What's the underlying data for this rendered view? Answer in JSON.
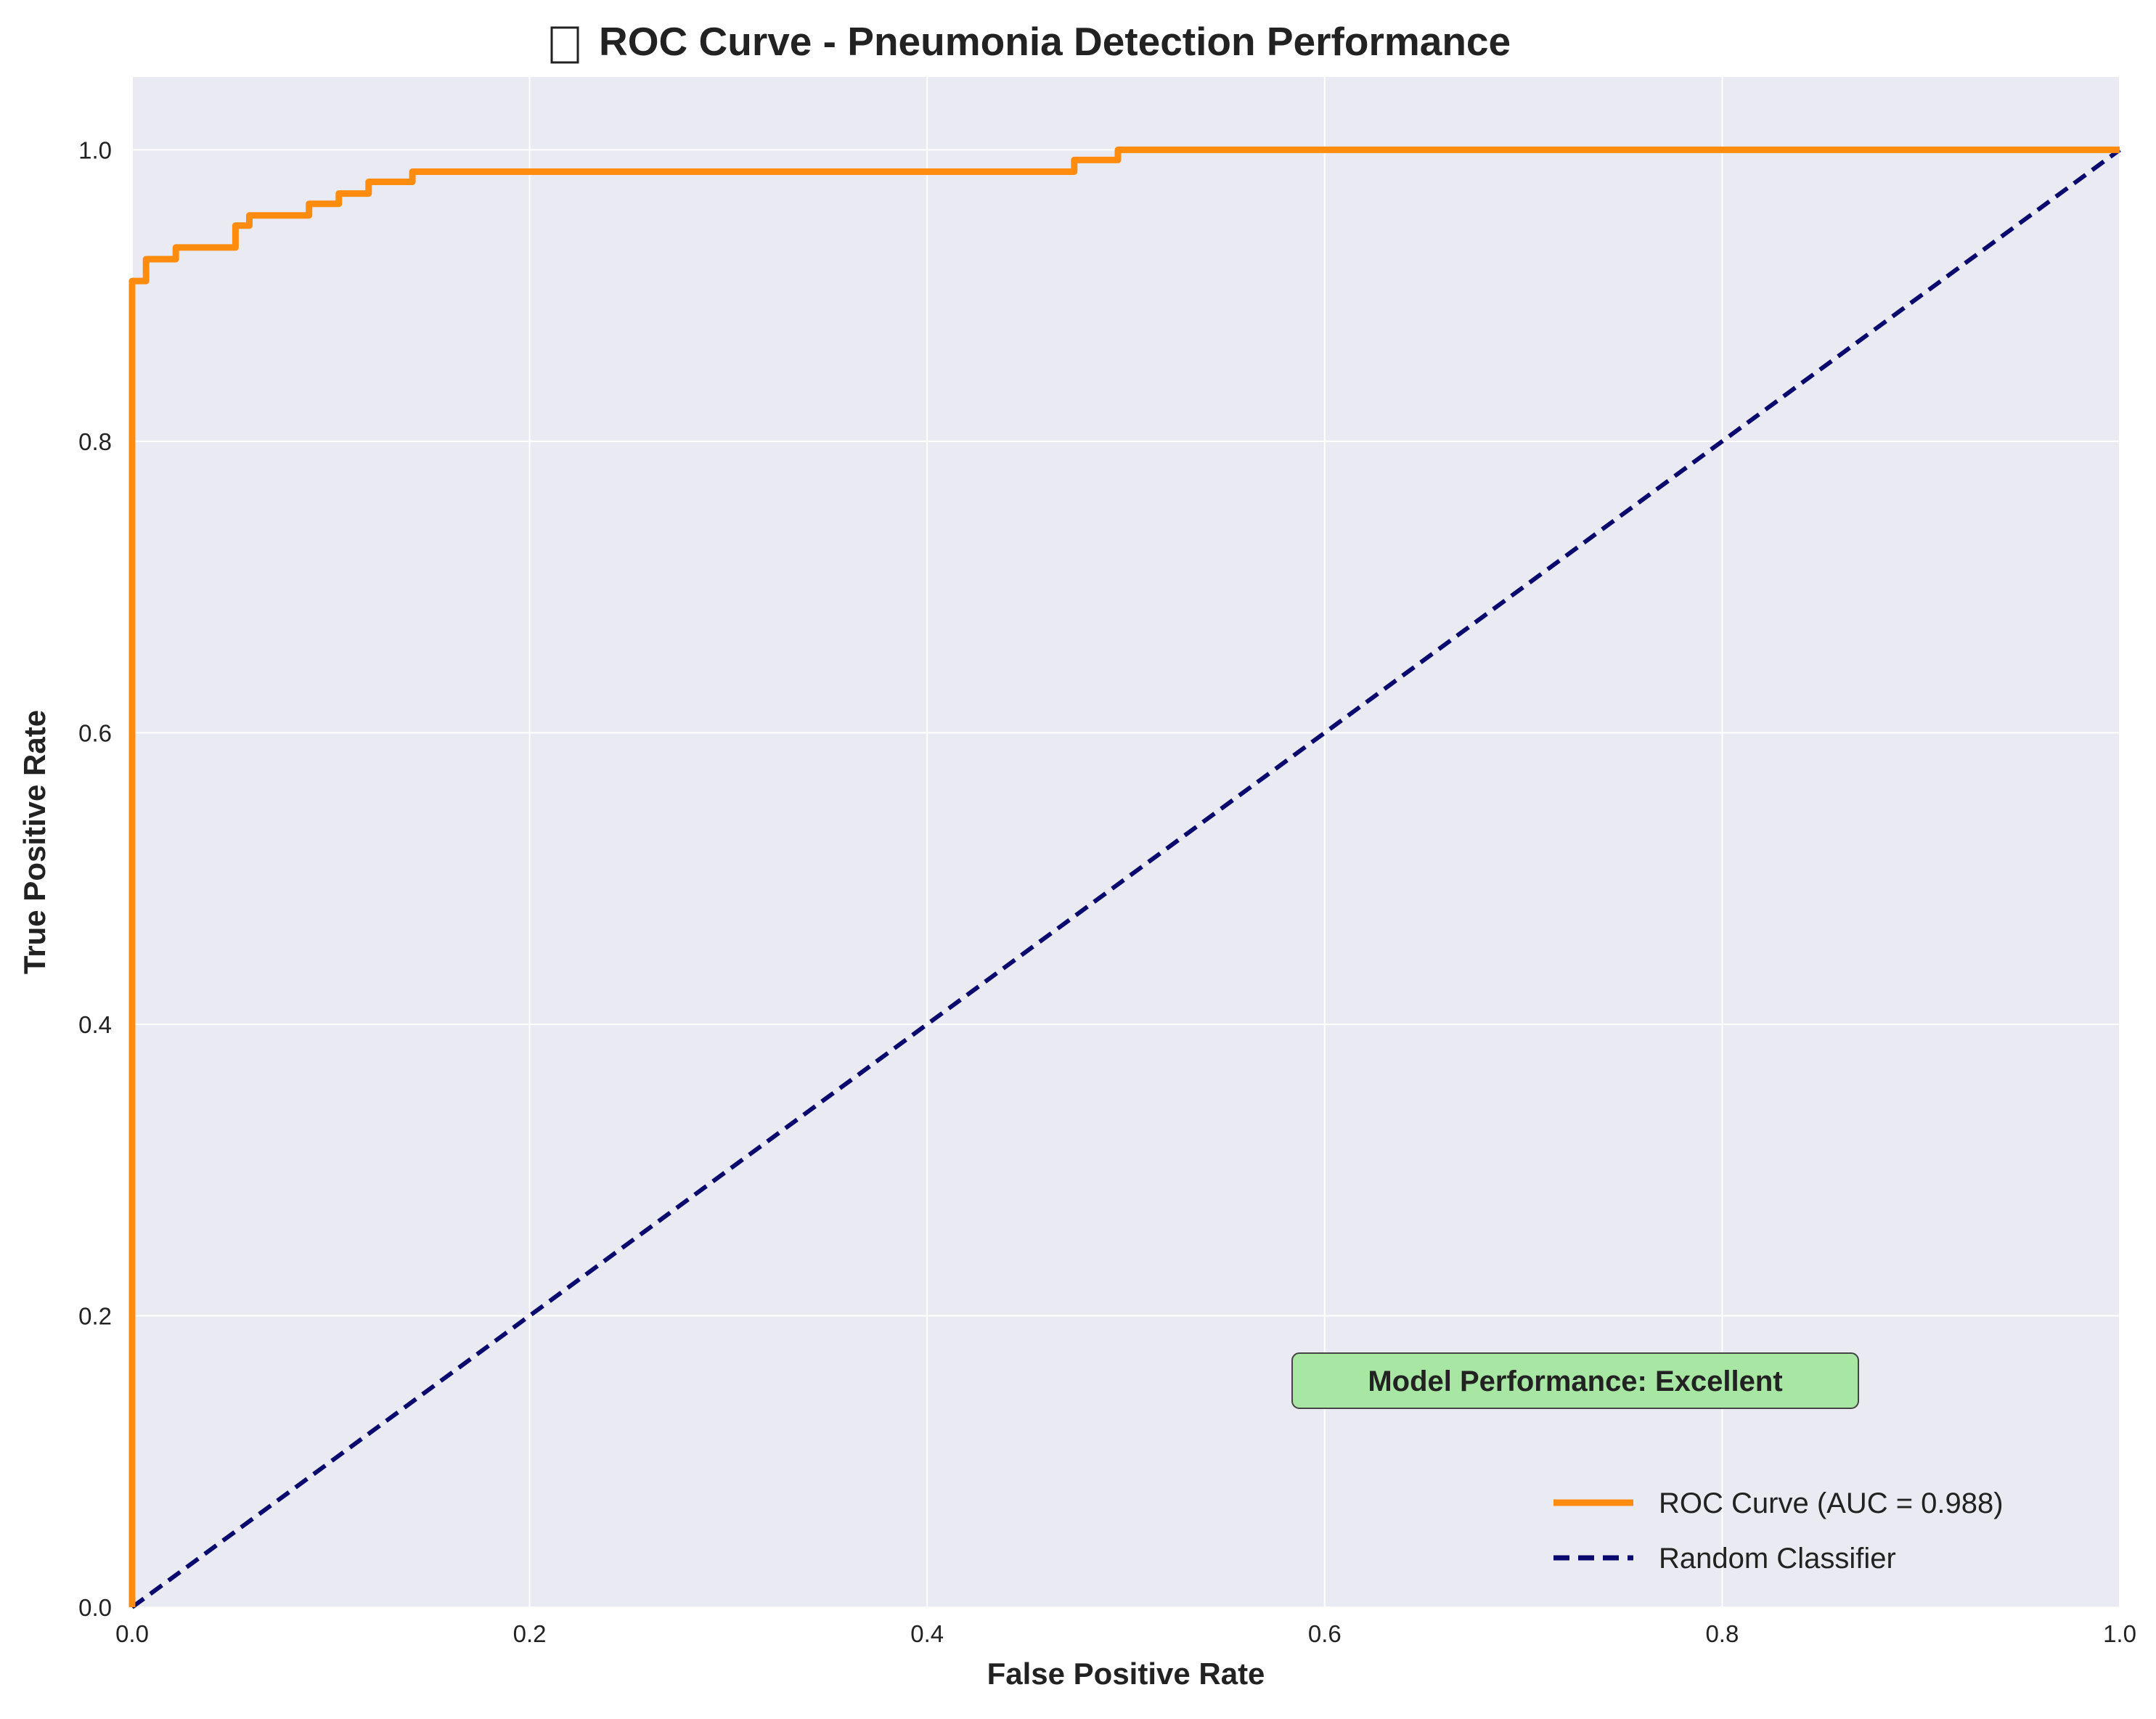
{
  "chart_data": {
    "type": "line",
    "title": "ROC Curve - Pneumonia Detection Performance",
    "title_icon": "stethoscope-icon",
    "xlabel": "False Positive Rate",
    "ylabel": "True Positive Rate",
    "xlim": [
      0,
      1
    ],
    "ylim": [
      0,
      1.05
    ],
    "xticks": [
      "0.0",
      "0.2",
      "0.4",
      "0.6",
      "0.8",
      "1.0"
    ],
    "yticks": [
      "0.0",
      "0.2",
      "0.4",
      "0.6",
      "0.8",
      "1.0"
    ],
    "grid": true,
    "legend_position": "bottom-right",
    "annotation": "Model Performance: Excellent",
    "colors": {
      "background": "#eaeaf2",
      "grid": "#ffffff",
      "roc": "#ff8c0f",
      "random": "#0a0a6e",
      "annotation_fill": "#a8e6a3"
    },
    "series": [
      {
        "name": "ROC Curve (AUC = 0.988)",
        "style": "solid",
        "x": [
          0.0,
          0.0,
          0.007,
          0.007,
          0.022,
          0.022,
          0.052,
          0.052,
          0.059,
          0.059,
          0.089,
          0.089,
          0.104,
          0.104,
          0.119,
          0.119,
          0.141,
          0.141,
          0.474,
          0.474,
          0.496,
          0.496,
          1.0
        ],
        "y": [
          0.0,
          0.91,
          0.91,
          0.925,
          0.925,
          0.933,
          0.933,
          0.948,
          0.948,
          0.955,
          0.955,
          0.963,
          0.963,
          0.97,
          0.97,
          0.978,
          0.978,
          0.985,
          0.985,
          0.993,
          0.993,
          1.0,
          1.0
        ]
      },
      {
        "name": "Random Classifier",
        "style": "dashed",
        "x": [
          0.0,
          1.0
        ],
        "y": [
          0.0,
          1.0
        ]
      }
    ]
  }
}
